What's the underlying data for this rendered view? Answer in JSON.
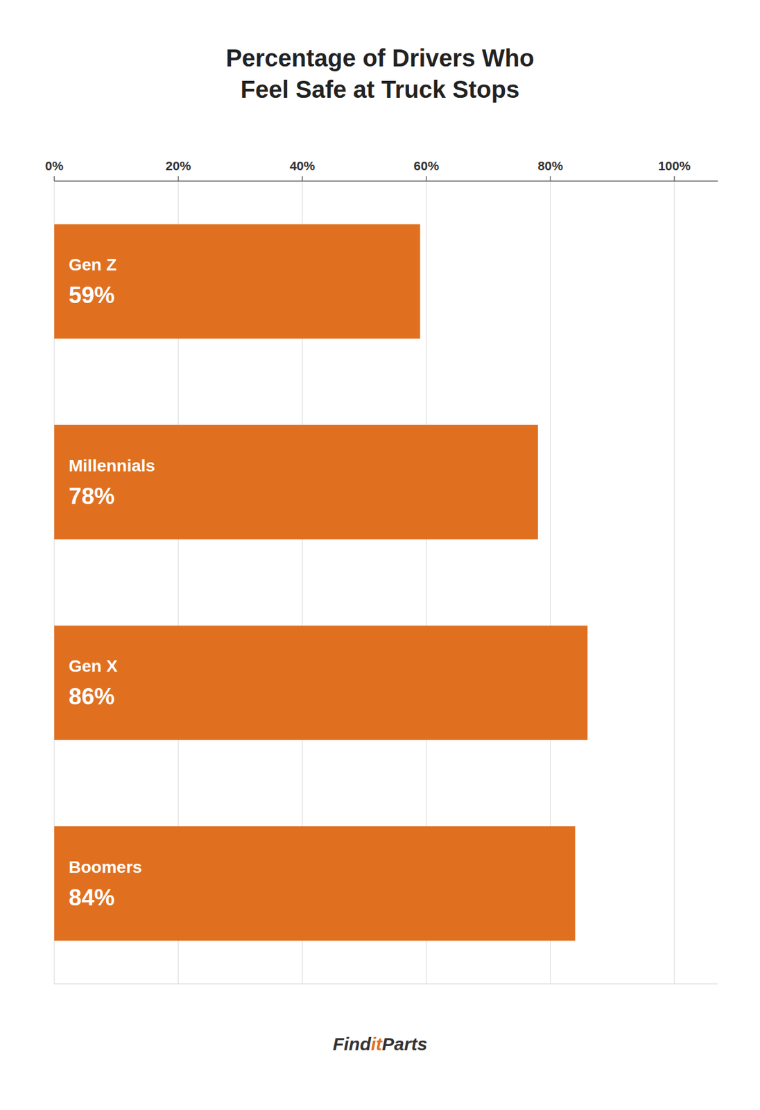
{
  "chart_data": {
    "type": "bar",
    "orientation": "horizontal",
    "title": "Percentage of Drivers Who\nFeel Safe at Truck Stops",
    "categories": [
      "Gen Z",
      "Millennials",
      "Gen X",
      "Boomers"
    ],
    "values": [
      59,
      78,
      86,
      84
    ],
    "value_labels": [
      "59%",
      "78%",
      "86%",
      "84%"
    ],
    "data_labels": true,
    "color": "#e07020",
    "xlim": [
      0,
      107
    ],
    "xticks": [
      {
        "value": 0,
        "label": "0%"
      },
      {
        "value": 20,
        "label": "20%"
      },
      {
        "value": 40,
        "label": "40%"
      },
      {
        "value": 60,
        "label": "60%"
      },
      {
        "value": 80,
        "label": "80%"
      },
      {
        "value": 100,
        "label": "100%"
      }
    ],
    "grid": true,
    "annotations": [
      "Find",
      "it",
      "Parts"
    ]
  }
}
